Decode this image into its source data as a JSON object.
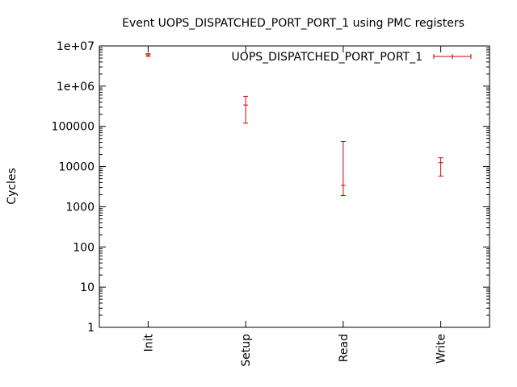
{
  "chart_data": {
    "type": "errorbar",
    "title": "Event UOPS_DISPATCHED_PORT_PORT_1 using PMC registers",
    "xlabel": "",
    "ylabel": "Cycles",
    "yscale": "log",
    "ylim": [
      1,
      10000000
    ],
    "yticks": [
      {
        "value": 1,
        "label": "1"
      },
      {
        "value": 10,
        "label": "10"
      },
      {
        "value": 100,
        "label": "100"
      },
      {
        "value": 1000,
        "label": "1000"
      },
      {
        "value": 10000,
        "label": "10000"
      },
      {
        "value": 100000,
        "label": "100000"
      },
      {
        "value": 1000000,
        "label": "1e+06"
      },
      {
        "value": 10000000,
        "label": "1e+07"
      }
    ],
    "categories": [
      "Init",
      "Setup",
      "Read",
      "Write"
    ],
    "legend_position": "top-right",
    "series": [
      {
        "name": "UOPS_DISPATCHED_PORT_PORT_1",
        "color": "#cc0000",
        "points": [
          {
            "category": "Init",
            "value": 6000000,
            "low": 5500000,
            "high": 6400000
          },
          {
            "category": "Setup",
            "value": 340000,
            "low": 120000,
            "high": 560000
          },
          {
            "category": "Read",
            "value": 3400,
            "low": 1900,
            "high": 42000
          },
          {
            "category": "Write",
            "value": 12500,
            "low": 5800,
            "high": 16500
          }
        ]
      }
    ]
  }
}
